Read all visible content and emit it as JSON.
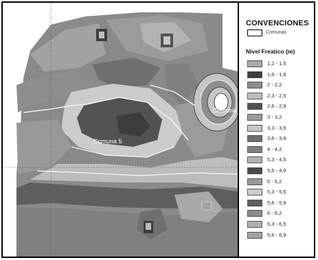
{
  "legend": {
    "title": "CONVENCIONES",
    "comunas_label": "Comunas",
    "subtitle": "Nivel Freatico (m)",
    "items": [
      {
        "label": "1,2 - 1,5",
        "color": "#a9a9a9"
      },
      {
        "label": "1,6 - 1,9",
        "color": "#3c3c3c"
      },
      {
        "label": "2 - 2,2",
        "color": "#8e8e8e"
      },
      {
        "label": "2,3 - 2,5",
        "color": "#bdbdbd"
      },
      {
        "label": "2,6 - 2,9",
        "color": "#525252"
      },
      {
        "label": "3 - 3,2",
        "color": "#9b9b9b"
      },
      {
        "label": "3,3 - 3,5",
        "color": "#c6c6c6"
      },
      {
        "label": "3,6 - 3,9",
        "color": "#6f6f6f"
      },
      {
        "label": "4 - 4,2",
        "color": "#808080"
      },
      {
        "label": "5,3 - 4,5",
        "color": "#b3b3b3"
      },
      {
        "label": "5,6 - 4,9",
        "color": "#4a4a4a"
      },
      {
        "label": "5 - 5,2",
        "color": "#999999"
      },
      {
        "label": "5,3 - 5,5",
        "color": "#cccccc"
      },
      {
        "label": "5,6 - 5,9",
        "color": "#5e5e5e"
      },
      {
        "label": "6 - 6,2",
        "color": "#8a8a8a"
      },
      {
        "label": "5,3 - 6,5",
        "color": "#b0b0b0"
      },
      {
        "label": "5,6 - 6,9",
        "color": "#a3a3a3"
      }
    ]
  },
  "map": {
    "labels": {
      "comuna_5": "Comuna 5",
      "comuna_partial": "Comuna"
    }
  }
}
